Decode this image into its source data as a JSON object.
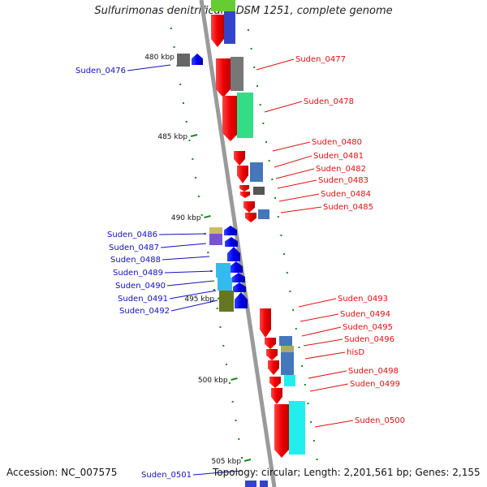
{
  "title": "Sulfurimonas denitrificans DSM 1251, complete genome",
  "accession": "Accession: NC_007575",
  "topology": "Topology: circular; Length: 2,201,561 bp; Genes: 2,155",
  "colors": {
    "backbone": "#9a9a9a",
    "ticks": "#1a8a1a",
    "forward_label": "#dd1111",
    "reverse_label": "#1111bb"
  },
  "scale_labels": [
    "480 kbp",
    "485 kbp",
    "490 kbp",
    "495 kbp",
    "500 kbp",
    "505 kbp"
  ],
  "forward_genes": [
    "Suden_0477",
    "Suden_0478",
    "Suden_0480",
    "Suden_0481",
    "Suden_0482",
    "Suden_0483",
    "Suden_0484",
    "Suden_0485",
    "Suden_0493",
    "Suden_0494",
    "Suden_0495",
    "Suden_0496",
    "hisD",
    "Suden_0498",
    "Suden_0499",
    "Suden_0500"
  ],
  "reverse_genes": [
    "Suden_0476",
    "Suden_0486",
    "Suden_0487",
    "Suden_0488",
    "Suden_0489",
    "Suden_0490",
    "Suden_0491",
    "Suden_0492",
    "Suden_0501"
  ]
}
